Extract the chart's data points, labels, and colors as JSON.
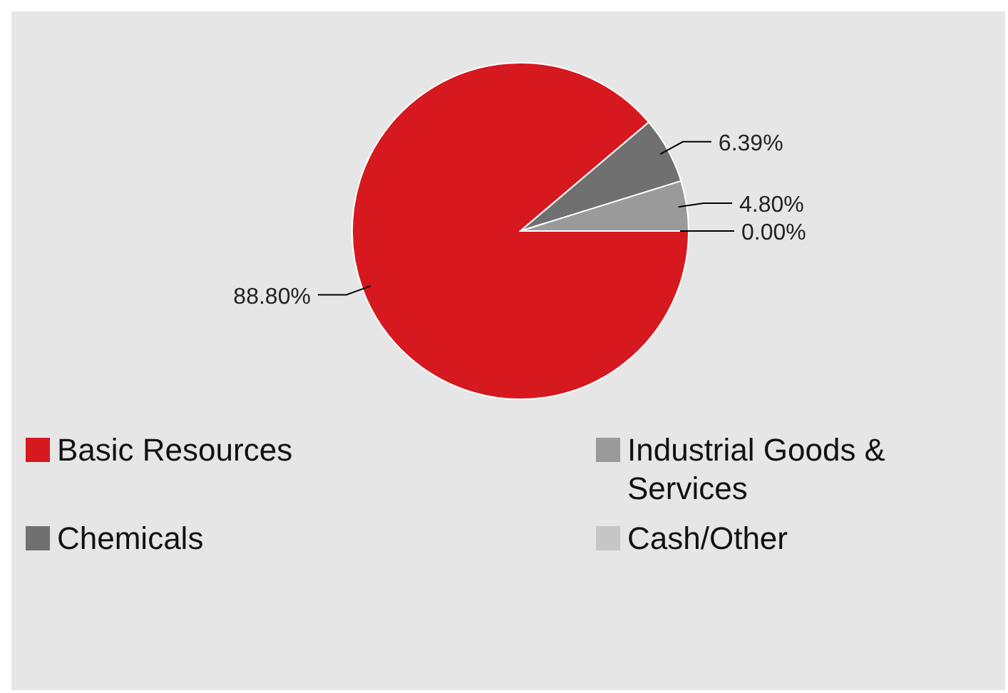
{
  "chart_data": {
    "type": "pie",
    "categories": [
      "Basic Resources",
      "Chemicals",
      "Industrial Goods & Services",
      "Cash/Other"
    ],
    "values": [
      88.8,
      6.39,
      4.8,
      0.0
    ],
    "colors": [
      "#d6181f",
      "#707070",
      "#9a9a9a",
      "#c6c6c6"
    ],
    "value_labels": [
      "88.80%",
      "6.39%",
      "4.80%",
      "0.00%"
    ],
    "legend": "bottom"
  }
}
